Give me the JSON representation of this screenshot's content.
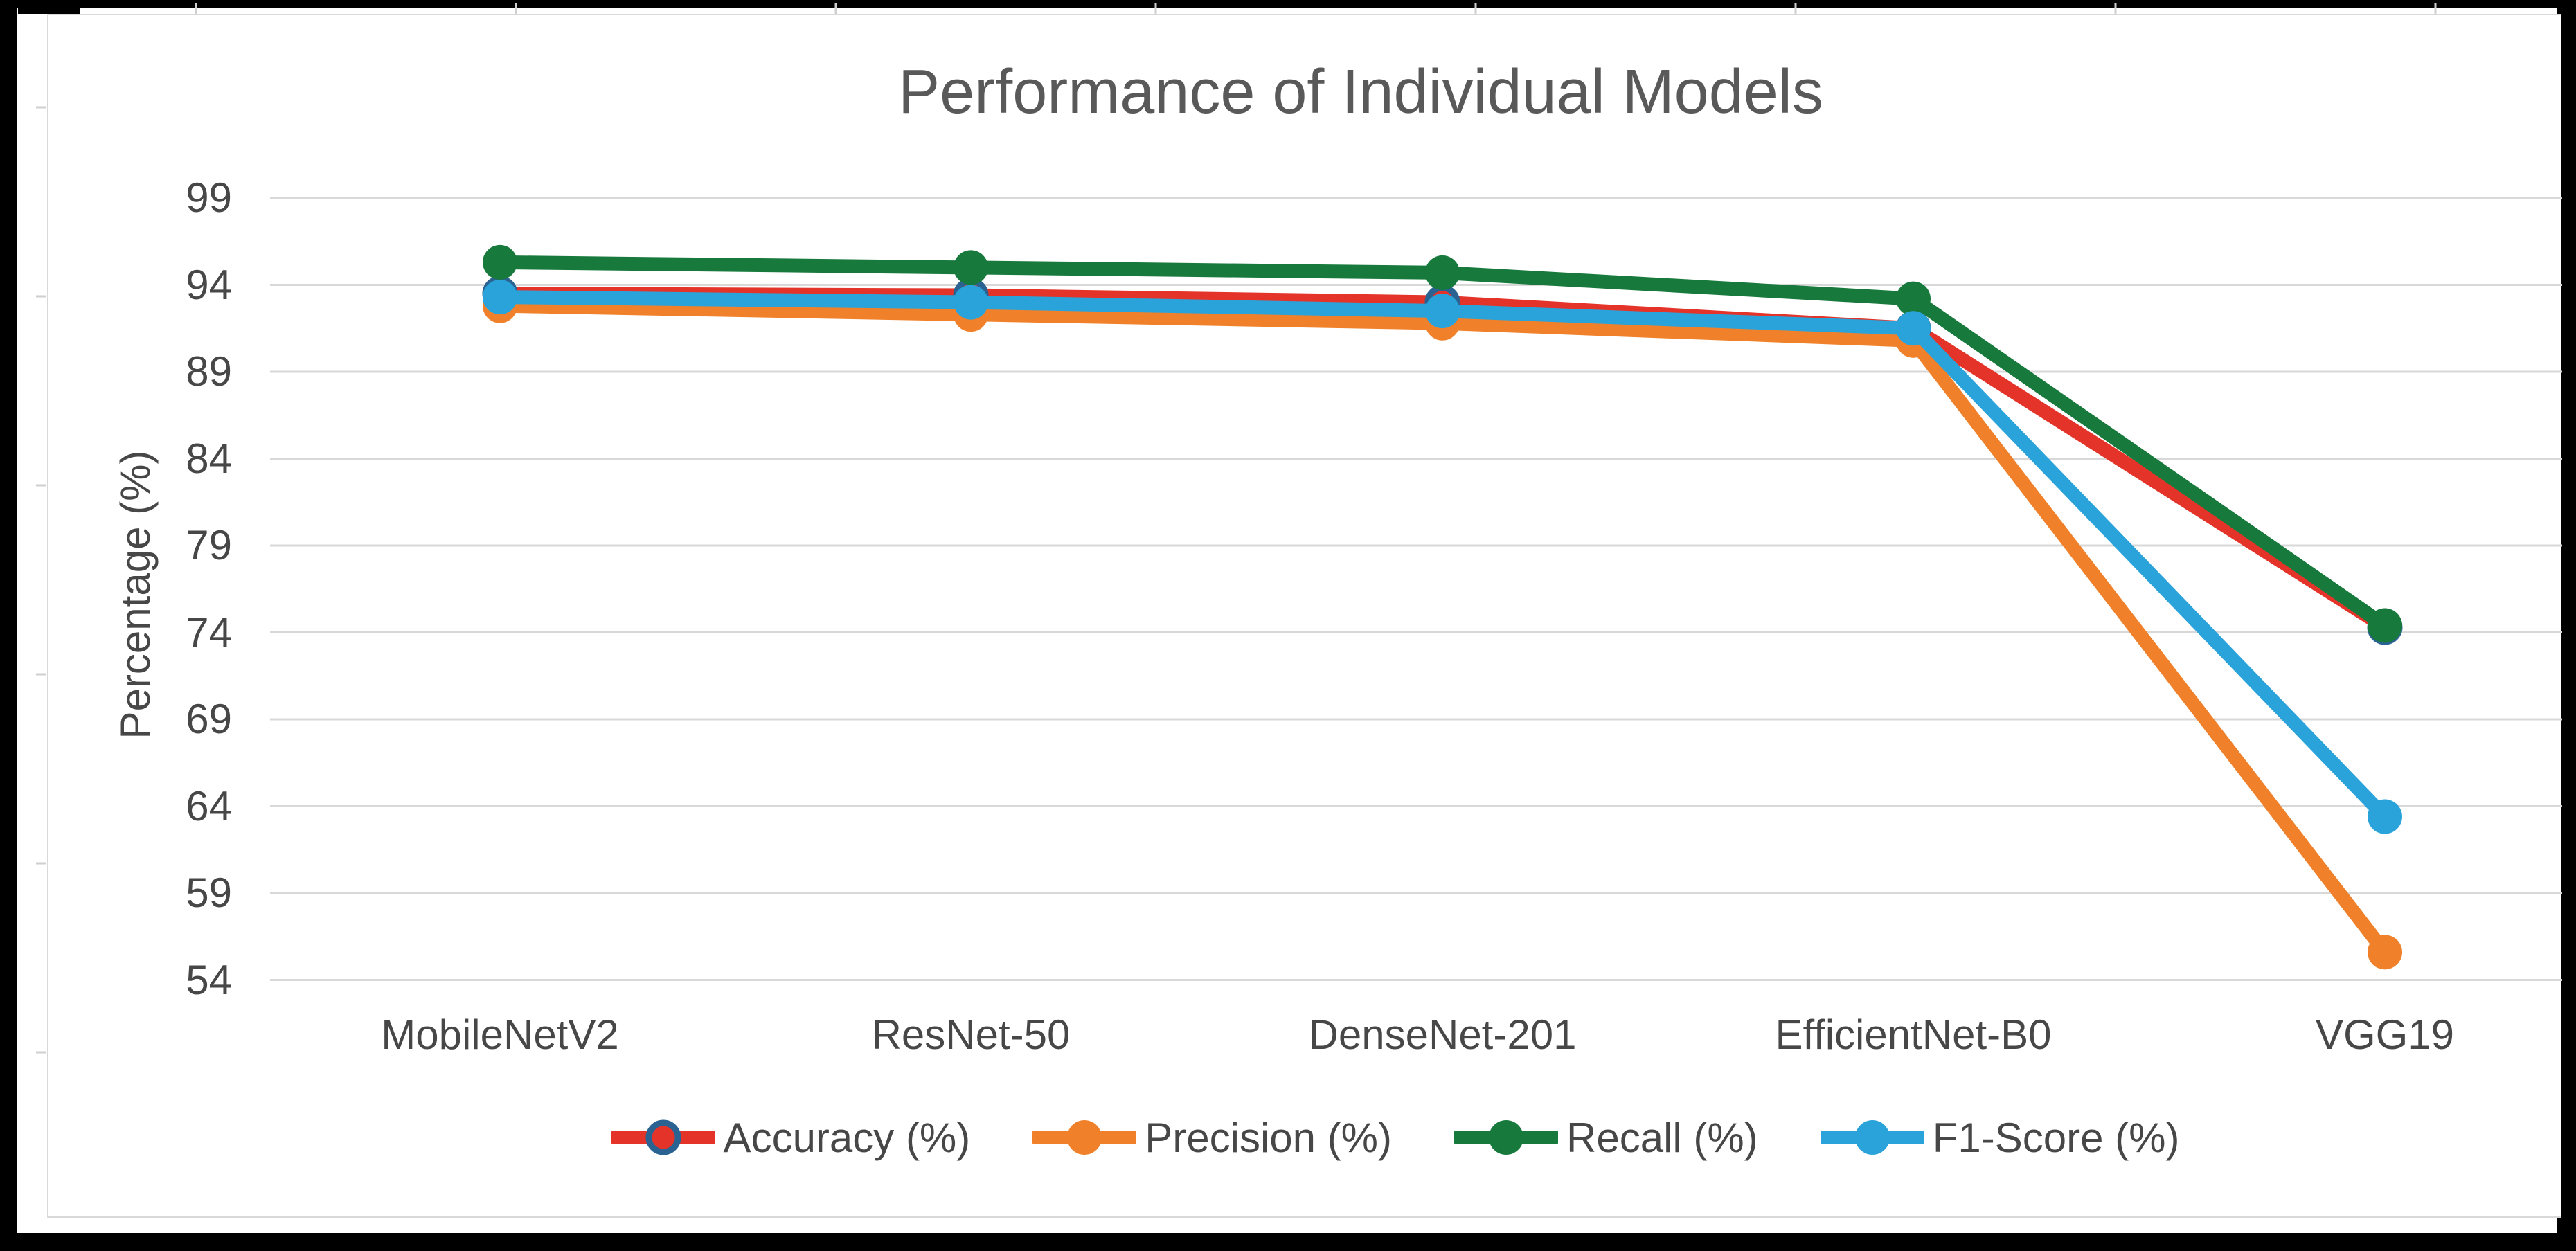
{
  "chart_data": {
    "type": "line",
    "title": "Performance of Individual Models",
    "xlabel": "",
    "ylabel": "Percentage (%)",
    "categories": [
      "MobileNetV2",
      "ResNet-50",
      "DenseNet-201",
      "EfficientNet-B0",
      "VGG19"
    ],
    "series": [
      {
        "name": "Accuracy (%)",
        "color": "#e4342a",
        "marker_outline": "#2a6391",
        "values": [
          93.5,
          93.4,
          93.0,
          91.5,
          74.3
        ]
      },
      {
        "name": "Precision (%)",
        "color": "#f0812a",
        "values": [
          92.8,
          92.3,
          91.8,
          90.8,
          55.6
        ]
      },
      {
        "name": "Recall (%)",
        "color": "#17793c",
        "values": [
          95.3,
          95.0,
          94.7,
          93.2,
          74.4
        ]
      },
      {
        "name": "F1-Score (%)",
        "color": "#2aa3db",
        "values": [
          93.3,
          93.0,
          92.5,
          91.5,
          63.4
        ]
      }
    ],
    "yticks": [
      99,
      94,
      89,
      84,
      79,
      74,
      69,
      64,
      59,
      54
    ],
    "ylim": [
      54,
      99
    ],
    "grid": "horizontal",
    "legend_position": "bottom"
  },
  "colors": {
    "frame": "#000000",
    "plot_background": "#ffffff",
    "gridline": "#d8d8d8",
    "chart_border": "#d9d9d9",
    "axis_text": "#474747",
    "title_text": "#595959"
  }
}
